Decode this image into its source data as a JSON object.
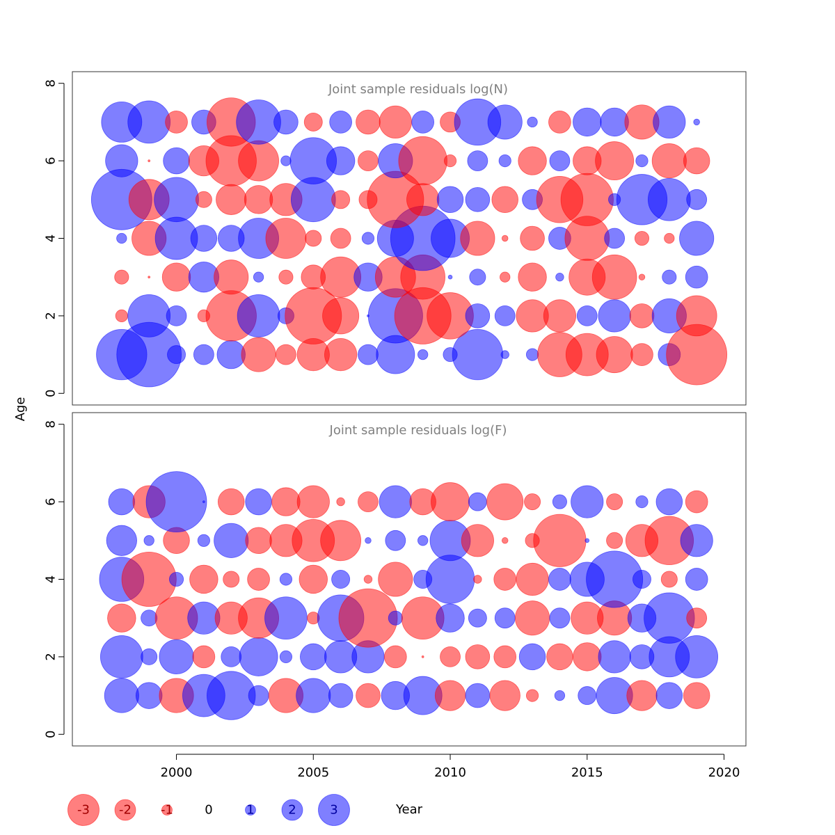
{
  "figure": {
    "y_axis_label": "Age",
    "x_axis_label": "Year",
    "colors": {
      "positive": "#0000ff",
      "negative": "#ff0000",
      "fill_opacity": 0.5,
      "frame": "#333333",
      "panel_title": "#808080"
    }
  },
  "legend": {
    "items": [
      {
        "label": "-3",
        "value": -3
      },
      {
        "label": "-2",
        "value": -2
      },
      {
        "label": "-1",
        "value": -1
      },
      {
        "label": "0",
        "value": 0
      },
      {
        "label": "1",
        "value": 1
      },
      {
        "label": "2",
        "value": 2
      },
      {
        "label": "3",
        "value": 3
      }
    ]
  },
  "chart_data": [
    {
      "type": "scatter",
      "title": "Joint sample residuals log(N)",
      "xlabel": "Year",
      "ylabel": "Age",
      "xlim": [
        1996.2,
        2020.8
      ],
      "ylim": [
        -0.3,
        8.3
      ],
      "x_ticks": [
        2000,
        2005,
        2010,
        2015,
        2020
      ],
      "y_ticks": [
        0,
        2,
        4,
        6,
        8
      ],
      "grid": false,
      "encoding": "bubble radius ~ |residual|; blue = positive, red = negative",
      "years": [
        1998,
        1999,
        2000,
        2001,
        2002,
        2003,
        2004,
        2005,
        2006,
        2007,
        2008,
        2009,
        2010,
        2011,
        2012,
        2013,
        2014,
        2015,
        2016,
        2017,
        2018,
        2019
      ],
      "ages": [
        1,
        2,
        3,
        4,
        5,
        6,
        7
      ],
      "residuals": [
        [
          2.5,
          3.2,
          0.9,
          1.0,
          1.4,
          -1.7,
          -1.0,
          -1.6,
          -1.6,
          1.0,
          1.9,
          0.5,
          0.7,
          2.5,
          0.4,
          0.6,
          -2.2,
          -2.1,
          -1.8,
          -1.1,
          1.1,
          -3.0
        ],
        [
          -0.6,
          2.1,
          1.0,
          -0.6,
          -2.5,
          2.1,
          0.8,
          -2.8,
          -1.8,
          0.1,
          2.7,
          -2.8,
          -2.3,
          1.2,
          1.0,
          -1.6,
          -1.6,
          1.0,
          1.6,
          -1.2,
          1.7,
          -2.0
        ],
        [
          -0.7,
          -0.1,
          -1.4,
          1.5,
          -1.7,
          0.5,
          -0.7,
          -1.2,
          -2.0,
          1.4,
          -2.0,
          -2.2,
          0.2,
          0.8,
          -0.5,
          -1.4,
          0.4,
          -1.8,
          -2.2,
          -0.3,
          0.7,
          1.1
        ],
        [
          0.5,
          -1.7,
          2.1,
          1.3,
          1.3,
          2.0,
          -2.0,
          -0.8,
          -1.0,
          0.6,
          1.8,
          3.2,
          1.9,
          -1.7,
          -0.3,
          -1.2,
          1.1,
          -2.2,
          1.0,
          -0.7,
          -0.5,
          1.7
        ],
        [
          3.0,
          -2.0,
          2.2,
          -0.8,
          -1.5,
          -1.4,
          -1.6,
          2.2,
          -0.9,
          -0.9,
          -2.8,
          -1.6,
          1.3,
          1.2,
          -1.3,
          1.0,
          -2.3,
          -2.6,
          0.6,
          2.5,
          2.1,
          1.0
        ],
        [
          1.6,
          -0.1,
          1.3,
          -1.5,
          -2.5,
          -2.0,
          0.5,
          2.3,
          1.4,
          -1.0,
          1.7,
          -2.4,
          -0.6,
          1.0,
          0.6,
          -1.4,
          1.0,
          -1.4,
          -1.9,
          0.6,
          -1.7,
          -1.3
        ],
        [
          2.0,
          2.1,
          -1.1,
          1.2,
          -2.4,
          2.2,
          1.2,
          -0.9,
          1.1,
          -1.2,
          -1.6,
          1.1,
          -1.0,
          2.3,
          1.7,
          0.5,
          -1.1,
          1.4,
          1.4,
          -1.7,
          1.6,
          0.3
        ]
      ]
    },
    {
      "type": "scatter",
      "title": "Joint sample residuals log(F)",
      "xlabel": "Year",
      "ylabel": "Age",
      "xlim": [
        1996.2,
        2020.8
      ],
      "ylim": [
        -0.3,
        8.3
      ],
      "x_ticks": [
        2000,
        2005,
        2010,
        2015,
        2020
      ],
      "y_ticks": [
        0,
        2,
        4,
        6,
        8
      ],
      "grid": false,
      "encoding": "bubble radius ~ |residual|; blue = positive, red = negative",
      "years": [
        1998,
        1999,
        2000,
        2001,
        2002,
        2003,
        2004,
        2005,
        2006,
        2007,
        2008,
        2009,
        2010,
        2011,
        2012,
        2013,
        2014,
        2015,
        2016,
        2017,
        2018,
        2019
      ],
      "ages": [
        1,
        2,
        3,
        4,
        5,
        6
      ],
      "residuals": [
        [
          1.7,
          1.3,
          -1.7,
          2.1,
          2.4,
          1.0,
          -1.7,
          1.7,
          1.2,
          -1.2,
          1.4,
          1.9,
          -1.5,
          1.2,
          -1.5,
          -0.6,
          0.5,
          0.9,
          1.8,
          -1.5,
          1.3,
          -1.3
        ],
        [
          2.1,
          0.8,
          1.7,
          -1.1,
          1.0,
          1.9,
          0.6,
          1.3,
          1.6,
          1.6,
          -1.1,
          -0.1,
          -1.0,
          -1.2,
          -1.1,
          1.3,
          -1.3,
          -1.4,
          1.6,
          1.2,
          2.0,
          2.1
        ],
        [
          -1.4,
          0.8,
          -2.1,
          1.6,
          -1.6,
          -2.0,
          2.1,
          -0.6,
          2.3,
          -2.9,
          0.7,
          -2.1,
          1.4,
          0.9,
          1.0,
          -1.7,
          1.0,
          -1.6,
          -1.7,
          1.4,
          2.5,
          -1.0
        ],
        [
          2.2,
          -2.7,
          0.7,
          -1.4,
          -0.8,
          -1.1,
          0.6,
          -1.4,
          0.9,
          -0.4,
          -1.7,
          0.9,
          2.4,
          -0.4,
          -1.1,
          -1.6,
          1.1,
          1.7,
          2.8,
          0.9,
          -0.8,
          1.1
        ],
        [
          1.5,
          0.5,
          -1.3,
          0.6,
          1.7,
          -1.3,
          -1.6,
          -2.1,
          -2.0,
          0.3,
          1.0,
          0.5,
          2.0,
          -1.6,
          -0.3,
          -0.7,
          -2.6,
          0.2,
          -0.8,
          -1.6,
          -2.4,
          1.6
        ],
        [
          1.3,
          -1.6,
          3.0,
          0.1,
          -1.3,
          1.3,
          -1.4,
          -1.6,
          -0.4,
          -1.0,
          1.6,
          -1.3,
          -1.9,
          0.9,
          -1.8,
          -0.8,
          0.7,
          1.6,
          -0.8,
          0.6,
          1.3,
          -1.1
        ]
      ]
    }
  ]
}
